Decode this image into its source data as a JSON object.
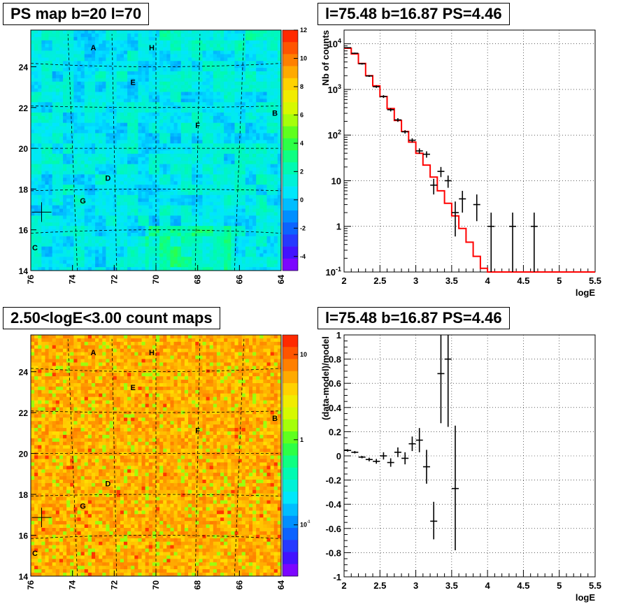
{
  "panels": {
    "ps_map": {
      "title": "PS map b=20 l=70"
    },
    "spectrum": {
      "title": "l=75.48 b=16.87 PS=4.46"
    },
    "count_map": {
      "title": "2.50<logE<3.00 count maps"
    },
    "residual": {
      "title": "l=75.48 b=16.87 PS=4.46"
    }
  },
  "colors": {
    "model_line": "#ff0000",
    "data": "#000000",
    "grid": "#000000"
  },
  "chart_data": [
    {
      "id": "ps_map",
      "type": "heatmap",
      "title": "PS map b=20 l=70",
      "x_ticks": [
        "76",
        "74",
        "72",
        "70",
        "68",
        "66",
        "64"
      ],
      "y_ticks": [
        "14",
        "16",
        "18",
        "20",
        "22",
        "24"
      ],
      "xlim": [
        76,
        64
      ],
      "ylim": [
        14,
        25.8
      ],
      "colorbar_ticks": [
        "12",
        "10",
        "8",
        "6",
        "4",
        "2",
        "0",
        "-2",
        "-4"
      ],
      "colorbar_range": [
        -5,
        12
      ],
      "colorbar_scale": "linear",
      "labels": [
        {
          "text": "A",
          "l": 73,
          "b": 24.8
        },
        {
          "text": "H",
          "l": 70.2,
          "b": 24.8
        },
        {
          "text": "E",
          "l": 71.1,
          "b": 23.1
        },
        {
          "text": "B",
          "l": 64.3,
          "b": 21.6
        },
        {
          "text": "F",
          "l": 68,
          "b": 21
        },
        {
          "text": "D",
          "l": 72.3,
          "b": 18.4
        },
        {
          "text": "G",
          "l": 73.5,
          "b": 17.3
        },
        {
          "text": "C",
          "l": 75.8,
          "b": 15
        }
      ],
      "marker": {
        "l": 75.48,
        "b": 16.87
      }
    },
    {
      "id": "spectrum",
      "type": "line",
      "title": "l=75.48 b=16.87 PS=4.46",
      "xlabel": "logE",
      "ylabel": "Nb of counts",
      "xlim": [
        2,
        5.5
      ],
      "ylim": [
        0.1,
        20000
      ],
      "yscale": "log",
      "x_ticks": [
        "2",
        "2.5",
        "3",
        "3.5",
        "4",
        "4.5",
        "5",
        "5.5"
      ],
      "y_ticks": [
        "10^-1",
        "1",
        "10",
        "10^2",
        "10^3",
        "10^4"
      ],
      "grid": true,
      "series": [
        {
          "kind": "step",
          "bin_edges": [
            2.0,
            2.1,
            2.2,
            2.3,
            2.4,
            2.5,
            2.6,
            2.7,
            2.8,
            2.9,
            3.0,
            3.1,
            3.2,
            3.3,
            3.4,
            3.5,
            3.6,
            3.7,
            3.8,
            3.9,
            4.0,
            4.1,
            4.2,
            4.3,
            4.4,
            4.5,
            4.6,
            4.7,
            4.8,
            4.9,
            5.0,
            5.1,
            5.2,
            5.3,
            5.4,
            5.5
          ],
          "values": [
            8000,
            6000,
            3700,
            2000,
            1200,
            700,
            380,
            210,
            120,
            70,
            40,
            22,
            12,
            6,
            3.2,
            1.7,
            0.9,
            0.45,
            0.22,
            0.12,
            0.1,
            0.1,
            0.1,
            0.1,
            0.1,
            0.1,
            0.1,
            0.1,
            0.1,
            0.1,
            0.1,
            0.1,
            0.1,
            0.1,
            0.1
          ]
        },
        {
          "kind": "errorbar",
          "points": [
            {
              "x": 2.05,
              "y": 8200,
              "lo": 7950,
              "hi": 8450
            },
            {
              "x": 2.15,
              "y": 6200,
              "lo": 6000,
              "hi": 6400
            },
            {
              "x": 2.25,
              "y": 3650,
              "lo": 3500,
              "hi": 3800
            },
            {
              "x": 2.35,
              "y": 1970,
              "lo": 1880,
              "hi": 2060
            },
            {
              "x": 2.45,
              "y": 1150,
              "lo": 1080,
              "hi": 1220
            },
            {
              "x": 2.55,
              "y": 700,
              "lo": 650,
              "hi": 750
            },
            {
              "x": 2.65,
              "y": 360,
              "lo": 330,
              "hi": 390
            },
            {
              "x": 2.75,
              "y": 215,
              "lo": 195,
              "hi": 235
            },
            {
              "x": 2.85,
              "y": 118,
              "lo": 108,
              "hi": 128
            },
            {
              "x": 2.95,
              "y": 77,
              "lo": 69,
              "hi": 85
            },
            {
              "x": 3.05,
              "y": 45,
              "lo": 39,
              "hi": 51
            },
            {
              "x": 3.15,
              "y": 38,
              "lo": 32,
              "hi": 44
            },
            {
              "x": 3.25,
              "y": 8,
              "lo": 5,
              "hi": 11
            },
            {
              "x": 3.35,
              "y": 16,
              "lo": 12,
              "hi": 20
            },
            {
              "x": 3.45,
              "y": 10,
              "lo": 7,
              "hi": 13
            },
            {
              "x": 3.55,
              "y": 2,
              "lo": 0.6,
              "hi": 3.5
            },
            {
              "x": 3.65,
              "y": 4,
              "lo": 2,
              "hi": 6
            },
            {
              "x": 3.85,
              "y": 3,
              "lo": 1.3,
              "hi": 5
            },
            {
              "x": 4.05,
              "y": 1,
              "lo": 0.1,
              "hi": 2
            },
            {
              "x": 4.35,
              "y": 1,
              "lo": 0.1,
              "hi": 2
            },
            {
              "x": 4.65,
              "y": 1,
              "lo": 0.1,
              "hi": 2
            }
          ]
        }
      ]
    },
    {
      "id": "count_map",
      "type": "heatmap",
      "title": "2.50<logE<3.00 count maps",
      "x_ticks": [
        "76",
        "74",
        "72",
        "70",
        "68",
        "66",
        "64"
      ],
      "y_ticks": [
        "14",
        "16",
        "18",
        "20",
        "22",
        "24"
      ],
      "xlim": [
        76,
        64
      ],
      "ylim": [
        14,
        25.8
      ],
      "colorbar_ticks": [
        "10",
        "1",
        "10^-1"
      ],
      "colorbar_range": [
        0.025,
        17
      ],
      "colorbar_scale": "log",
      "labels": [
        {
          "text": "A",
          "l": 73,
          "b": 24.8
        },
        {
          "text": "H",
          "l": 70.2,
          "b": 24.8
        },
        {
          "text": "E",
          "l": 71.1,
          "b": 23.1
        },
        {
          "text": "B",
          "l": 64.3,
          "b": 21.6
        },
        {
          "text": "F",
          "l": 68,
          "b": 21
        },
        {
          "text": "D",
          "l": 72.3,
          "b": 18.4
        },
        {
          "text": "G",
          "l": 73.5,
          "b": 17.3
        },
        {
          "text": "C",
          "l": 75.8,
          "b": 15
        }
      ],
      "marker": {
        "l": 75.48,
        "b": 16.87
      }
    },
    {
      "id": "residual",
      "type": "scatter",
      "title": "l=75.48 b=16.87 PS=4.46",
      "xlabel": "logE",
      "ylabel": "(data-model)/model",
      "xlim": [
        2,
        5.5
      ],
      "ylim": [
        -1,
        1
      ],
      "x_ticks": [
        "2",
        "2.5",
        "3",
        "3.5",
        "4",
        "4.5",
        "5",
        "5.5"
      ],
      "y_ticks": [
        "-1",
        "-0.8",
        "-0.6",
        "-0.4",
        "-0.2",
        "0",
        "0.2",
        "0.4",
        "0.6",
        "0.8",
        "1"
      ],
      "grid": true,
      "points": [
        {
          "x": 2.05,
          "y": 0.045,
          "lo": 0.035,
          "hi": 0.055
        },
        {
          "x": 2.15,
          "y": 0.03,
          "lo": 0.02,
          "hi": 0.04
        },
        {
          "x": 2.25,
          "y": -0.01,
          "lo": -0.02,
          "hi": 0.0
        },
        {
          "x": 2.35,
          "y": -0.03,
          "lo": -0.045,
          "hi": -0.015
        },
        {
          "x": 2.45,
          "y": -0.045,
          "lo": -0.065,
          "hi": -0.025
        },
        {
          "x": 2.55,
          "y": 0.0,
          "lo": -0.03,
          "hi": 0.03
        },
        {
          "x": 2.65,
          "y": -0.055,
          "lo": -0.09,
          "hi": -0.02
        },
        {
          "x": 2.75,
          "y": 0.03,
          "lo": -0.01,
          "hi": 0.07
        },
        {
          "x": 2.85,
          "y": -0.02,
          "lo": -0.07,
          "hi": 0.03
        },
        {
          "x": 2.95,
          "y": 0.1,
          "lo": 0.04,
          "hi": 0.16
        },
        {
          "x": 3.05,
          "y": 0.13,
          "lo": 0.03,
          "hi": 0.23
        },
        {
          "x": 3.15,
          "y": -0.09,
          "lo": -0.23,
          "hi": 0.05
        },
        {
          "x": 3.25,
          "y": -0.54,
          "lo": -0.69,
          "hi": -0.38
        },
        {
          "x": 3.35,
          "y": 0.68,
          "lo": 0.27,
          "hi": 1.0
        },
        {
          "x": 3.45,
          "y": 0.8,
          "lo": 0.24,
          "hi": 1.0
        },
        {
          "x": 3.55,
          "y": -0.27,
          "lo": -0.78,
          "hi": 0.25
        }
      ]
    }
  ]
}
